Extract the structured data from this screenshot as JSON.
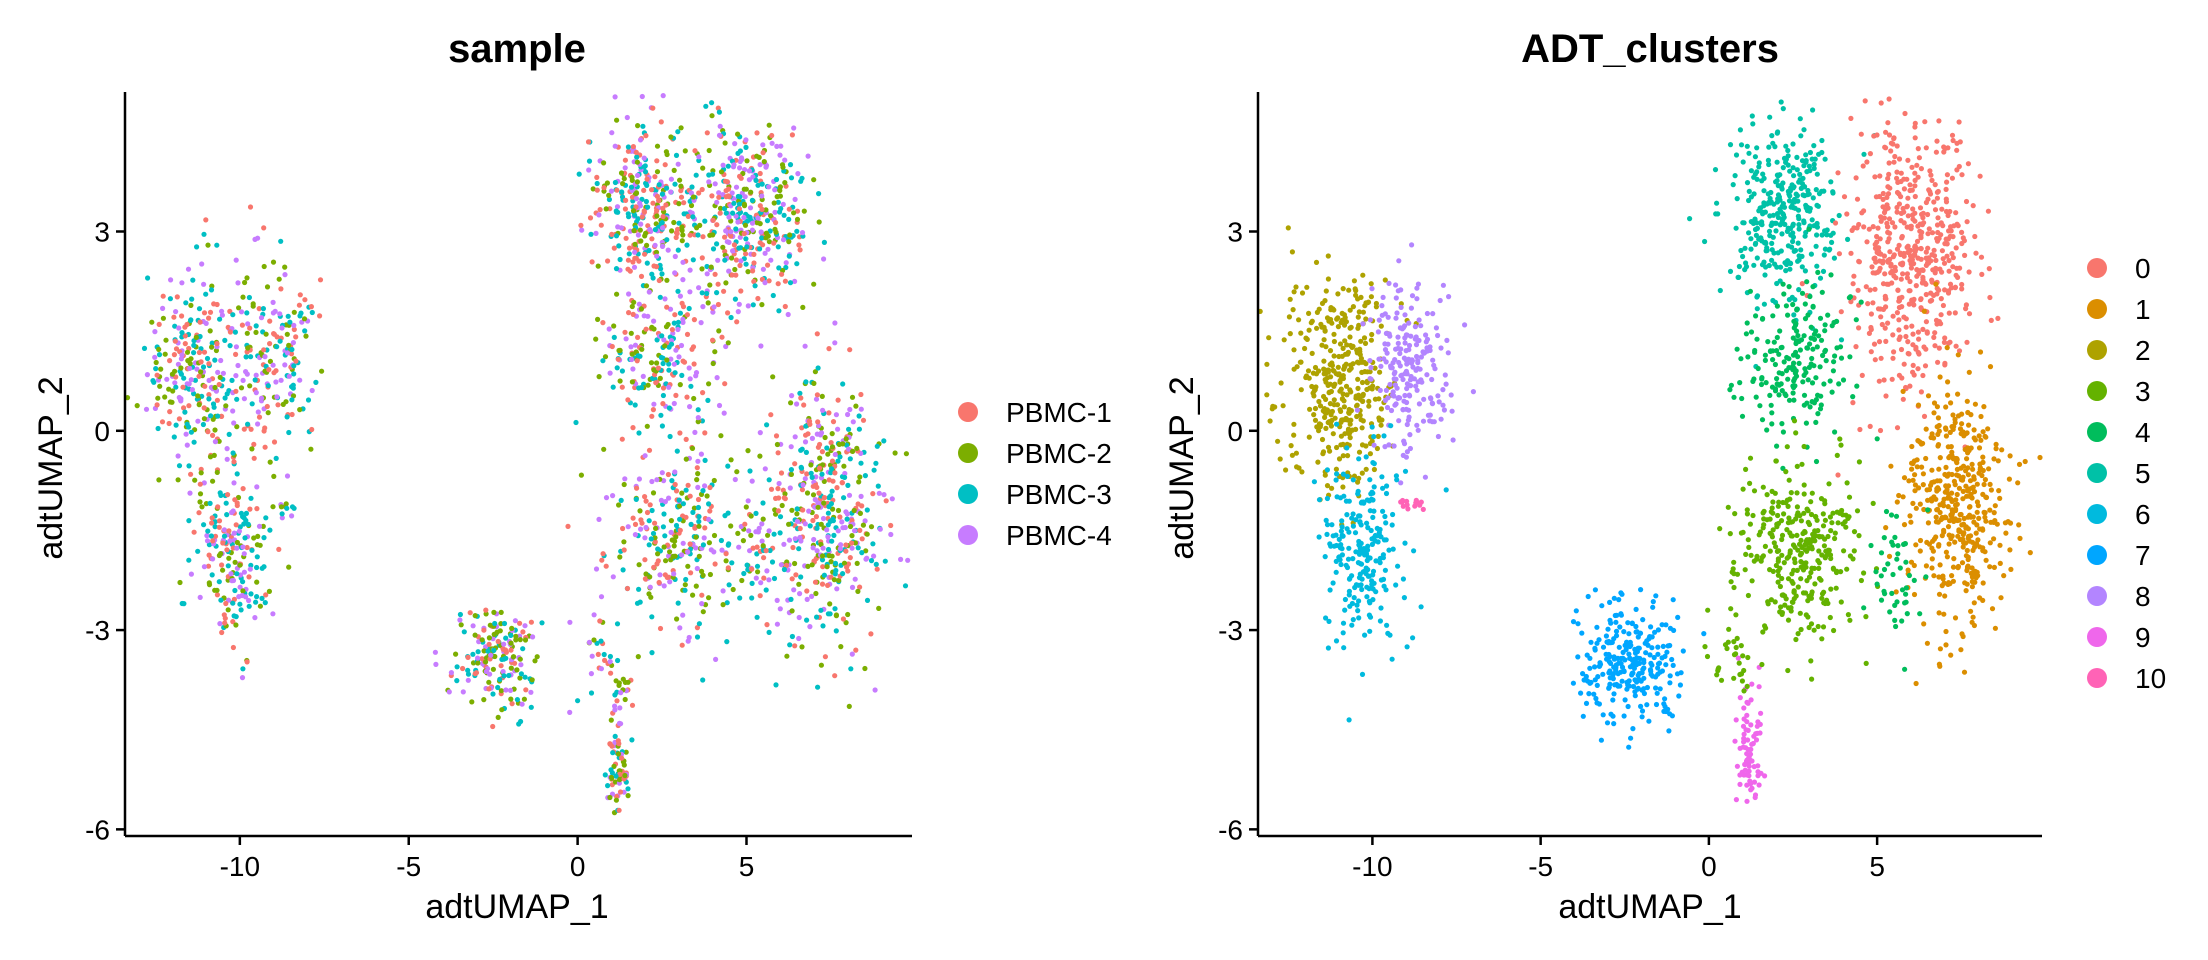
{
  "chart_data": [
    {
      "type": "scatter",
      "title": "sample",
      "xlabel": "adtUMAP_1",
      "ylabel": "adtUMAP_2",
      "xlim": [
        -13.4,
        9.9
      ],
      "ylim": [
        -6.1,
        5.1
      ],
      "xticks": [
        -10,
        -5,
        0,
        5
      ],
      "xtick_labels": [
        "-10",
        "-5",
        "0",
        "5"
      ],
      "yticks": [
        -6,
        -3,
        0,
        3
      ],
      "ytick_labels": [
        "-6",
        "-3",
        "0",
        "3"
      ],
      "grid": false,
      "legend_position": "right",
      "series": [
        {
          "name": "PBMC-1",
          "color": "#F8766D"
        },
        {
          "name": "PBMC-2",
          "color": "#7CAE00"
        },
        {
          "name": "PBMC-3",
          "color": "#00BFC4"
        },
        {
          "name": "PBMC-4",
          "color": "#C77CFF"
        }
      ],
      "color_mode": "mixed",
      "clusters": [
        {
          "cx": -11.3,
          "cy": 1.0,
          "sx": 0.7,
          "sy": 0.75,
          "n": 260
        },
        {
          "cx": -9.0,
          "cy": 1.1,
          "sx": 0.7,
          "sy": 0.65,
          "n": 190
        },
        {
          "cx": -10.3,
          "cy": -1.8,
          "sx": 0.55,
          "sy": 0.7,
          "n": 220
        },
        {
          "cx": -8.7,
          "cy": -1.15,
          "sx": 0.25,
          "sy": 0.05,
          "n": 10
        },
        {
          "cx": -2.4,
          "cy": -3.4,
          "sx": 0.65,
          "sy": 0.4,
          "n": 190
        },
        {
          "cx": 1.2,
          "cy": -5.0,
          "sx": 0.18,
          "sy": 0.35,
          "n": 70
        },
        {
          "cx": 1.3,
          "cy": -4.0,
          "sx": 0.2,
          "sy": 0.25,
          "n": 20
        },
        {
          "cx": 2.0,
          "cy": 3.3,
          "sx": 0.8,
          "sy": 0.65,
          "n": 330
        },
        {
          "cx": 5.0,
          "cy": 3.2,
          "sx": 0.9,
          "sy": 0.7,
          "n": 430
        },
        {
          "cx": 2.5,
          "cy": 1.0,
          "sx": 0.9,
          "sy": 0.55,
          "n": 200
        },
        {
          "cx": 2.8,
          "cy": -1.6,
          "sx": 1.0,
          "sy": 0.75,
          "n": 280
        },
        {
          "cx": 7.3,
          "cy": -1.2,
          "sx": 0.85,
          "sy": 0.95,
          "n": 470
        },
        {
          "cx": 5.4,
          "cy": -1.9,
          "sx": 0.45,
          "sy": 0.45,
          "n": 60
        },
        {
          "cx": 0.6,
          "cy": -3.5,
          "sx": 0.35,
          "sy": 0.3,
          "n": 25
        }
      ]
    },
    {
      "type": "scatter",
      "title": "ADT_clusters",
      "xlabel": "adtUMAP_1",
      "ylabel": "adtUMAP_2",
      "xlim": [
        -13.4,
        9.9
      ],
      "ylim": [
        -6.1,
        5.1
      ],
      "xticks": [
        -10,
        -5,
        0,
        5
      ],
      "xtick_labels": [
        "-10",
        "-5",
        "0",
        "5"
      ],
      "yticks": [
        -6,
        -3,
        0,
        3
      ],
      "ytick_labels": [
        "-6",
        "-3",
        "0",
        "3"
      ],
      "grid": false,
      "legend_position": "right",
      "series": [
        {
          "name": "0",
          "color": "#F8766D"
        },
        {
          "name": "1",
          "color": "#DB8E00"
        },
        {
          "name": "2",
          "color": "#AEA200"
        },
        {
          "name": "3",
          "color": "#64B200"
        },
        {
          "name": "4",
          "color": "#00BD5C"
        },
        {
          "name": "5",
          "color": "#00C1A7"
        },
        {
          "name": "6",
          "color": "#00BADE"
        },
        {
          "name": "7",
          "color": "#00A6FF"
        },
        {
          "name": "8",
          "color": "#B385FF"
        },
        {
          "name": "9",
          "color": "#EF67EB"
        },
        {
          "name": "10",
          "color": "#FF63B6"
        }
      ],
      "color_mode": "by_cluster",
      "clusters": [
        {
          "cx": -11.0,
          "cy": 0.8,
          "sx": 0.75,
          "sy": 0.8,
          "n": 380,
          "k": 2
        },
        {
          "cx": -8.9,
          "cy": 1.0,
          "sx": 0.65,
          "sy": 0.7,
          "n": 210,
          "k": 8
        },
        {
          "cx": -10.2,
          "cy": -1.8,
          "sx": 0.6,
          "sy": 0.7,
          "n": 230,
          "k": 6
        },
        {
          "cx": -8.9,
          "cy": -1.05,
          "sx": 0.25,
          "sy": 0.06,
          "n": 14,
          "k": 10
        },
        {
          "cx": -2.4,
          "cy": -3.5,
          "sx": 0.7,
          "sy": 0.45,
          "n": 260,
          "k": 7
        },
        {
          "cx": 1.2,
          "cy": -4.8,
          "sx": 0.18,
          "sy": 0.45,
          "n": 80,
          "k": 9
        },
        {
          "cx": 2.2,
          "cy": 3.3,
          "sx": 0.8,
          "sy": 0.7,
          "n": 340,
          "k": 5
        },
        {
          "cx": 6.0,
          "cy": 2.6,
          "sx": 0.9,
          "sy": 0.95,
          "n": 520,
          "k": 0
        },
        {
          "cx": 2.5,
          "cy": 1.0,
          "sx": 0.9,
          "sy": 0.6,
          "n": 200,
          "k": 4
        },
        {
          "cx": 2.6,
          "cy": -1.8,
          "sx": 0.95,
          "sy": 0.7,
          "n": 330,
          "k": 3
        },
        {
          "cx": 7.4,
          "cy": -1.2,
          "sx": 0.75,
          "sy": 0.95,
          "n": 440,
          "k": 1
        },
        {
          "cx": 5.6,
          "cy": -2.1,
          "sx": 0.4,
          "sy": 0.45,
          "n": 45,
          "k": 4
        },
        {
          "cx": 0.6,
          "cy": -3.5,
          "sx": 0.35,
          "sy": 0.3,
          "n": 25,
          "k": 3
        }
      ]
    }
  ]
}
